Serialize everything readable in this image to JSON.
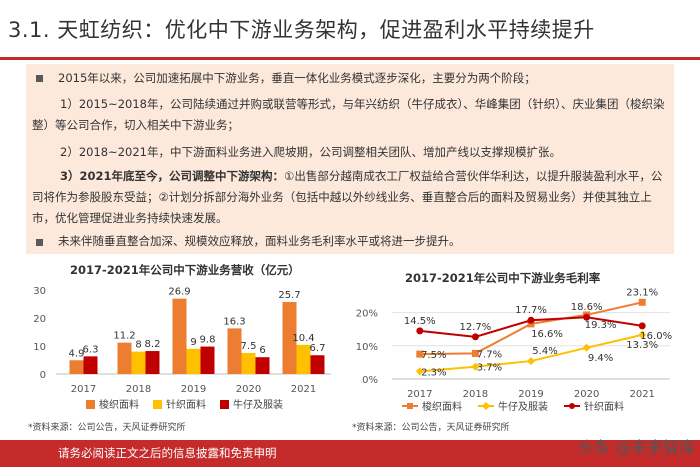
{
  "header": {
    "title": "3.1. 天虹纺织：优化中下游业务架构，促进盈利水平持续提升"
  },
  "body": {
    "p1": "2015年以来，公司加速拓展中下游业务，垂直一体化业务模式逐步深化，主要分为两个阶段；",
    "p2": "1）2015~2018年，公司陆续通过并购或联营等形式，与年兴纺织（牛仔成衣）、华峰集团（针织）、庆业集团（梭织染整）等公司合作，切入相关中下游业务；",
    "p3": "2）2018~2021年，中下游面料业务进入爬坡期，公司调整相关团队、增加产线以支撑规模扩张。",
    "p4_bold": "3）2021年底至今，公司调整中下游架构：",
    "p4_rest": "①出售部分越南成衣工厂权益给合营伙伴华利达，以提升服装盈利水平，公司将作为参股股东受益；②计划分拆部分海外业务（包括中越以外纱线业务、垂直整合后的面料及贸易业务）并使其独立上市，优化管理促进业务持续快速发展。",
    "p5": "未来伴随垂直整合加深、规模效应释放，面料业务毛利率水平或将进一步提升。"
  },
  "chart_data": [
    {
      "type": "bar",
      "title": "2017-2021年公司中下游业务营收（亿元）",
      "categories": [
        "2017",
        "2018",
        "2019",
        "2020",
        "2021"
      ],
      "series": [
        {
          "name": "梭织面料",
          "color": "#ed7d31",
          "values": [
            4.9,
            11.2,
            26.9,
            16.3,
            25.7
          ]
        },
        {
          "name": "针织面料",
          "color": "#ffc000",
          "values": [
            null,
            8.0,
            9.0,
            7.5,
            10.4
          ]
        },
        {
          "name": "牛仔及服装",
          "color": "#c00000",
          "values": [
            6.3,
            8.2,
            9.8,
            6.0,
            6.7
          ]
        }
      ],
      "ylim": [
        0,
        30
      ],
      "yticks": [
        "0",
        "10",
        "20",
        "30"
      ],
      "grid": false,
      "legend": "bottom"
    },
    {
      "type": "line",
      "title": "2017-2021年公司中下游业务毛利率",
      "categories": [
        "2017",
        "2018",
        "2019",
        "2020",
        "2021"
      ],
      "series": [
        {
          "name": "梭织面料",
          "color": "#ed7d31",
          "values": [
            7.5,
            7.7,
            16.6,
            19.3,
            23.1
          ],
          "labels": [
            "7.5%",
            "7.7%",
            "16.6%",
            "19.3%",
            "23.1%"
          ]
        },
        {
          "name": "牛仔及服装",
          "color": "#ffc000",
          "values": [
            2.3,
            3.7,
            5.4,
            9.4,
            13.3
          ],
          "labels": [
            "2.3%",
            "3.7%",
            "5.4%",
            "9.4%",
            "13.3%"
          ]
        },
        {
          "name": "针织面料",
          "color": "#c00000",
          "values": [
            14.5,
            12.7,
            17.7,
            18.6,
            16.0
          ],
          "labels": [
            "14.5%",
            "12.7%",
            "17.7%",
            "18.6%",
            "16.0%"
          ]
        }
      ],
      "ylim": [
        0,
        25
      ],
      "yticks": [
        "0%",
        "10%",
        "20%"
      ],
      "grid": true,
      "legend": "bottom"
    }
  ],
  "sources": {
    "left": "*资料来源：公司公告，天风证券研究所",
    "right": "*资料来源：公司公告，天风证券研究所"
  },
  "footer": {
    "disclaimer": "请务必阅读正文之后的信息披露和免责申明"
  },
  "watermark": {
    "text": "头条 @未来智库"
  }
}
